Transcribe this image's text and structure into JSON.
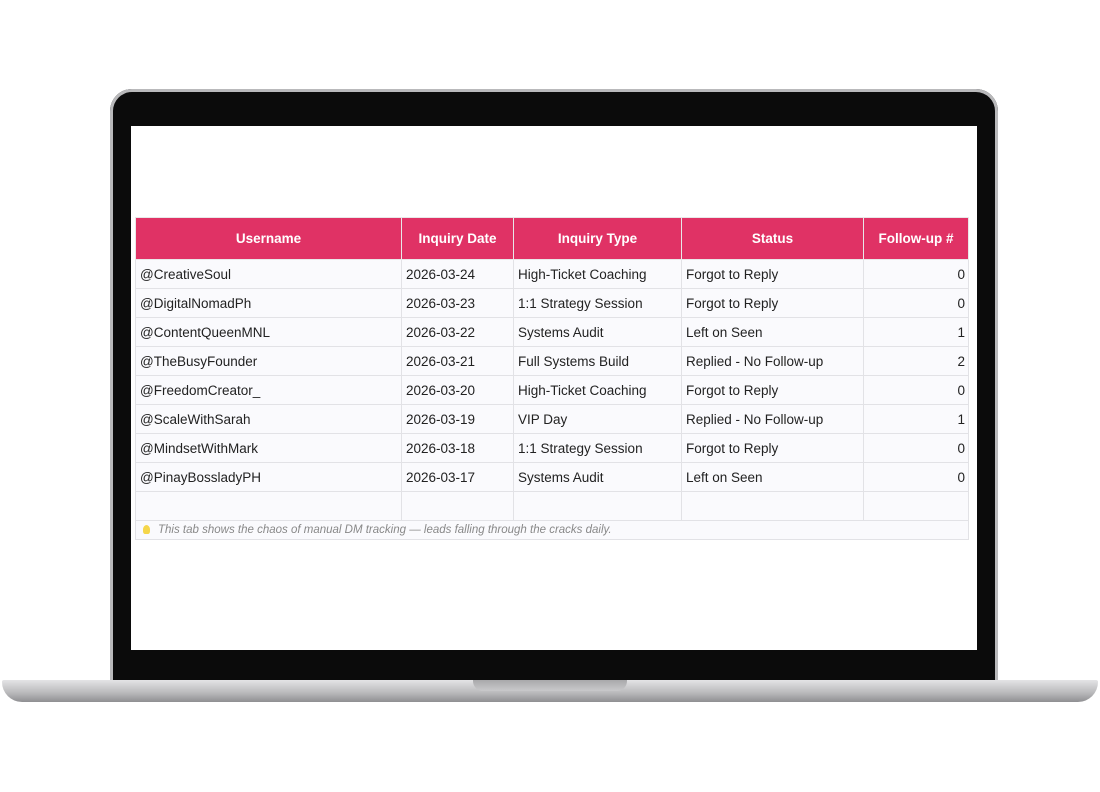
{
  "table": {
    "headers": [
      "Username",
      "Inquiry Date",
      "Inquiry Type",
      "Status",
      "Follow-up #"
    ],
    "rows": [
      [
        "@CreativeSoul",
        "2026-03-24",
        "High-Ticket Coaching",
        "Forgot to Reply",
        0
      ],
      [
        "@DigitalNomadPh",
        "2026-03-23",
        "1:1 Strategy Session",
        "Forgot to Reply",
        0
      ],
      [
        "@ContentQueenMNL",
        "2026-03-22",
        "Systems Audit",
        "Left on Seen",
        1
      ],
      [
        "@TheBusyFounder",
        "2026-03-21",
        "Full Systems Build",
        "Replied - No Follow-up",
        2
      ],
      [
        "@FreedomCreator_",
        "2026-03-20",
        "High-Ticket Coaching",
        "Forgot to Reply",
        0
      ],
      [
        "@ScaleWithSarah",
        "2026-03-19",
        "VIP Day",
        "Replied - No Follow-up",
        1
      ],
      [
        "@MindsetWithMark",
        "2026-03-18",
        "1:1 Strategy Session",
        "Forgot to Reply",
        0
      ],
      [
        "@PinayBossladyPH",
        "2026-03-17",
        "Systems Audit",
        "Left on Seen",
        0
      ]
    ],
    "note": "This tab shows the chaos of manual DM tracking — leads falling through the cracks daily."
  }
}
